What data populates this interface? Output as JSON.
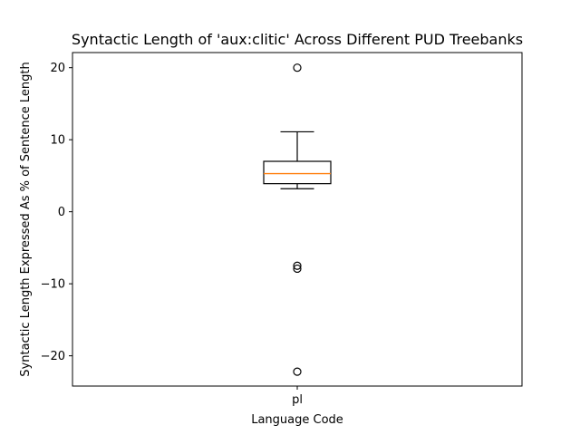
{
  "chart_data": {
    "type": "box",
    "title": "Syntactic Length of 'aux:clitic' Across Different PUD Treebanks",
    "xlabel": "Language Code",
    "ylabel": "Syntactic Length Expressed As % of Sentence Length",
    "categories": [
      "pl"
    ],
    "ylim": [
      -24.2,
      22.1
    ],
    "yticks": [
      -20,
      -10,
      0,
      10,
      20
    ],
    "grid": false,
    "boxes": [
      {
        "category": "pl",
        "whisker_low": 3.2,
        "q1": 3.9,
        "median": 5.3,
        "q3": 7.0,
        "whisker_high": 11.1,
        "outliers": [
          20.0,
          -7.5,
          -7.9,
          -22.2
        ]
      }
    ],
    "colors": {
      "median": "#ff7f0e",
      "box": "#000000"
    }
  }
}
